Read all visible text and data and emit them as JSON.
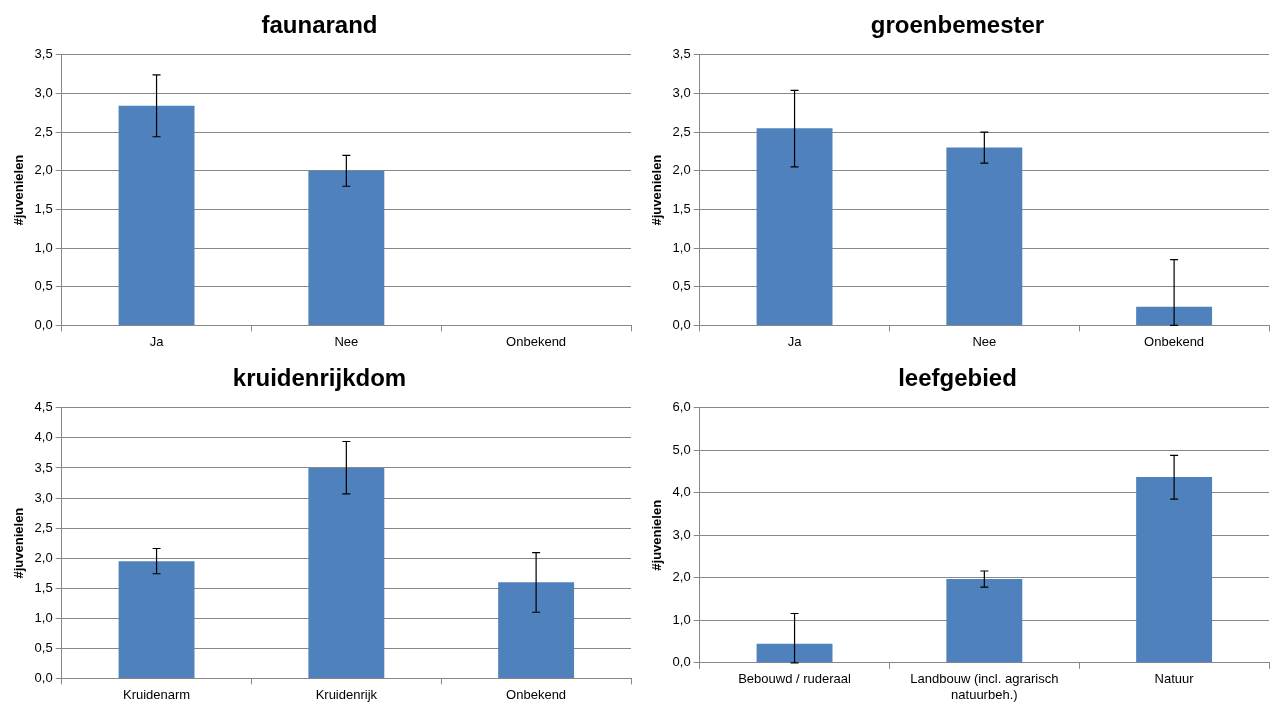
{
  "chart_data": [
    {
      "type": "bar",
      "title": "faunarand",
      "ylabel": "#juvenielen",
      "categories": [
        "Ja",
        "Nee",
        "Onbekend"
      ],
      "values": [
        2.84,
        2.0,
        0
      ],
      "errors": [
        0.4,
        0.2,
        null
      ],
      "color": "#4f81bd",
      "ylim": [
        0,
        3.5
      ],
      "yticks": [
        {
          "value": 0,
          "label": "0,0"
        },
        {
          "value": 0.5,
          "label": "0,5"
        },
        {
          "value": 1,
          "label": "1,0"
        },
        {
          "value": 1.5,
          "label": "1,5"
        },
        {
          "value": 2,
          "label": "2,0"
        },
        {
          "value": 2.5,
          "label": "2,5"
        },
        {
          "value": 3,
          "label": "3,0"
        },
        {
          "value": 3.5,
          "label": "3,5"
        }
      ],
      "grid": "y"
    },
    {
      "type": "bar",
      "title": "groenbemester",
      "ylabel": "#juvenielen",
      "categories": [
        "Ja",
        "Nee",
        "Onbekend"
      ],
      "values": [
        2.55,
        2.3,
        0.24
      ],
      "errors": [
        [
          2.05,
          3.04
        ],
        0.2,
        [
          0,
          0.85
        ]
      ],
      "color": "#4f81bd",
      "ylim": [
        0,
        3.5
      ],
      "yticks": [
        {
          "value": 0,
          "label": "0,0"
        },
        {
          "value": 0.5,
          "label": "0,5"
        },
        {
          "value": 1,
          "label": "1,0"
        },
        {
          "value": 1.5,
          "label": "1,5"
        },
        {
          "value": 2,
          "label": "2,0"
        },
        {
          "value": 2.5,
          "label": "2,5"
        },
        {
          "value": 3,
          "label": "3,0"
        },
        {
          "value": 3.5,
          "label": "3,5"
        }
      ],
      "grid": "y"
    },
    {
      "type": "bar",
      "title": "kruidenrijkdom",
      "ylabel": "#juvenielen",
      "categories": [
        "Kruidenarm",
        "Kruidenrijk",
        "Onbekend"
      ],
      "values": [
        1.95,
        3.5,
        1.6
      ],
      "errors": [
        [
          1.74,
          2.16
        ],
        [
          3.07,
          3.94
        ],
        [
          1.1,
          2.09
        ]
      ],
      "color": "#4f81bd",
      "ylim": [
        0,
        4.5
      ],
      "yticks": [
        {
          "value": 0,
          "label": "0,0"
        },
        {
          "value": 0.5,
          "label": "0,5"
        },
        {
          "value": 1,
          "label": "1,0"
        },
        {
          "value": 1.5,
          "label": "1,5"
        },
        {
          "value": 2,
          "label": "2,0"
        },
        {
          "value": 2.5,
          "label": "2,5"
        },
        {
          "value": 3,
          "label": "3,0"
        },
        {
          "value": 3.5,
          "label": "3,5"
        },
        {
          "value": 4,
          "label": "4,0"
        },
        {
          "value": 4.5,
          "label": "4,5"
        }
      ],
      "grid": "y"
    },
    {
      "type": "bar",
      "title": "leefgebied",
      "ylabel": "#juvenielen",
      "categories": [
        "Bebouwd / ruderaal",
        "Landbouw (incl. agrarisch natuurbeh.)",
        "Natuur"
      ],
      "values": [
        0.45,
        1.97,
        4.37
      ],
      "errors": [
        [
          0,
          1.16
        ],
        [
          1.78,
          2.16
        ],
        [
          3.85,
          4.88
        ]
      ],
      "color": "#4f81bd",
      "ylim": [
        0,
        6
      ],
      "yticks": [
        {
          "value": 0,
          "label": "0,0"
        },
        {
          "value": 1,
          "label": "1,0"
        },
        {
          "value": 2,
          "label": "2,0"
        },
        {
          "value": 3,
          "label": "3,0"
        },
        {
          "value": 4,
          "label": "4,0"
        },
        {
          "value": 5,
          "label": "5,0"
        },
        {
          "value": 6,
          "label": "6,0"
        }
      ],
      "grid": "y"
    }
  ]
}
